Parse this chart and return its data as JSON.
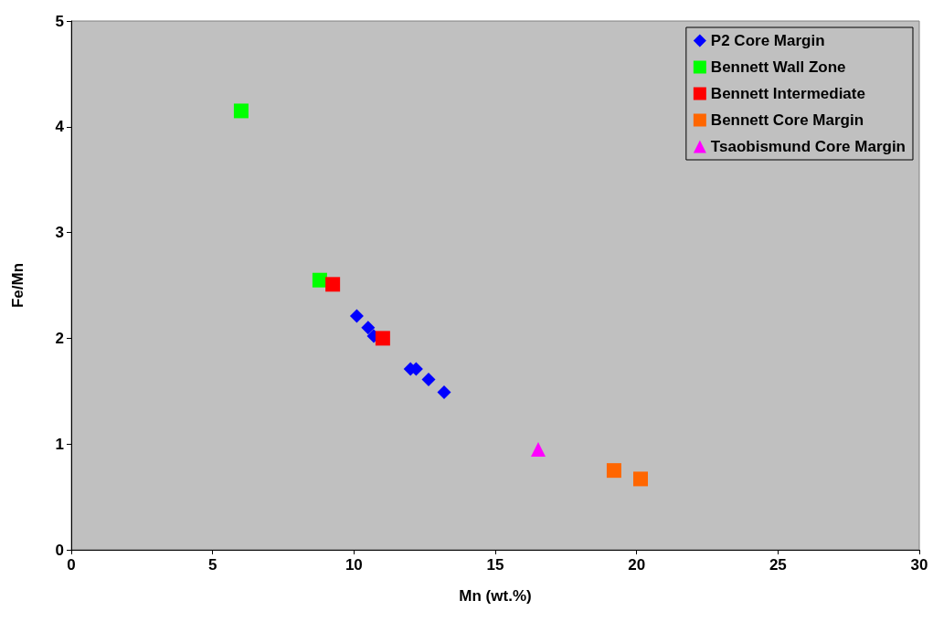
{
  "chart_data": {
    "type": "scatter",
    "xlabel": "Mn (wt.%)",
    "ylabel": "Fe/Mn",
    "xlim": [
      0,
      30
    ],
    "xticks": [
      0,
      5,
      10,
      15,
      20,
      25,
      30
    ],
    "ylim": [
      0,
      5
    ],
    "yticks": [
      0,
      1,
      2,
      3,
      4,
      5
    ],
    "grid": false,
    "legend": "top right",
    "series": [
      {
        "name": "P2 Core Margin",
        "color": "#0000ff",
        "marker": "diamond",
        "x": [
          10.1,
          10.3,
          10.4,
          10.5,
          10.6,
          10.7,
          12.0,
          12.2,
          12.64,
          13.19
        ],
        "values": [
          2.21,
          null,
          null,
          2.1,
          null,
          2.02,
          1.71,
          1.71,
          1.61,
          1.49
        ]
      },
      {
        "name": "Bennett Wall Zone",
        "color": "#00ff00",
        "marker": "square",
        "x": [
          6.01,
          8.79
        ],
        "values": [
          4.15,
          2.55
        ]
      },
      {
        "name": "Bennett Intermediate",
        "color": "#ff0000",
        "marker": "square",
        "x": [
          9.25,
          11.02
        ],
        "values": [
          2.51,
          2.0
        ]
      },
      {
        "name": "Bennett Core Margin",
        "color": "#ff6600",
        "marker": "square",
        "x": [
          19.2,
          20.14
        ],
        "values": [
          0.75,
          0.67
        ]
      },
      {
        "name": "Tsaobismund Core Margin",
        "color": "#ff00ff",
        "marker": "triangle",
        "x": [
          16.52
        ],
        "values": [
          0.95
        ]
      }
    ]
  }
}
